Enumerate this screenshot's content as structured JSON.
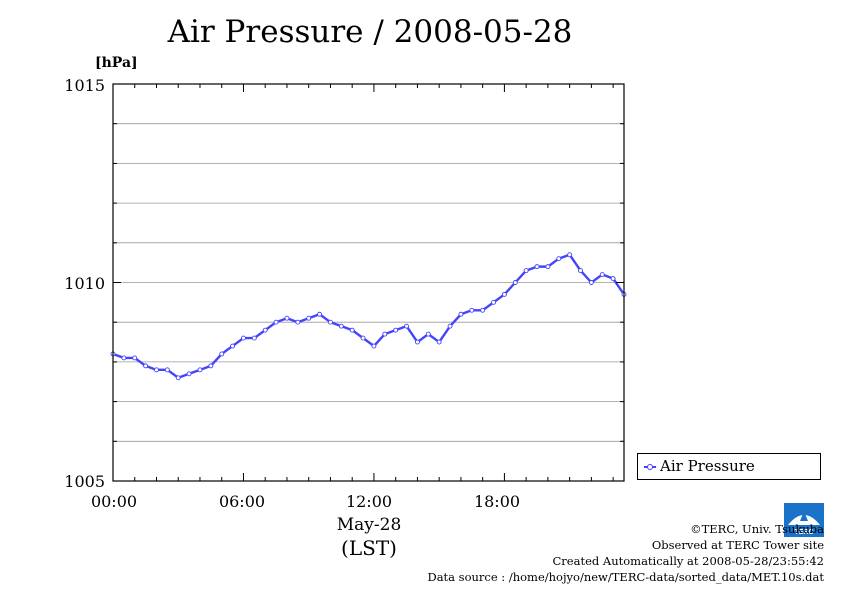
{
  "chart_data": {
    "type": "line",
    "title": "Air Pressure / 2008-05-28",
    "ylabel": "[hPa]",
    "xlabel_date": "May-28",
    "xlabel_tz": "(LST)",
    "ylim": [
      1005,
      1015
    ],
    "xlim_hours": [
      0,
      23.5
    ],
    "y_ticks": [
      "1015",
      "1010",
      "1005"
    ],
    "x_ticks": [
      "00:00",
      "06:00",
      "12:00",
      "18:00"
    ],
    "grid": true,
    "legend_position": "right",
    "series": [
      {
        "name": "Air Pressure",
        "color": "#4444ff",
        "x_hours": [
          0.0,
          0.5,
          1.0,
          1.5,
          2.0,
          2.5,
          3.0,
          3.5,
          4.0,
          4.5,
          5.0,
          5.5,
          6.0,
          6.5,
          7.0,
          7.5,
          8.0,
          8.5,
          9.0,
          9.5,
          10.0,
          10.5,
          11.0,
          11.5,
          12.0,
          12.5,
          13.0,
          13.5,
          14.0,
          14.5,
          15.0,
          15.5,
          16.0,
          16.5,
          17.0,
          17.5,
          18.0,
          18.5,
          19.0,
          19.5,
          20.0,
          20.5,
          21.0,
          21.5,
          22.0,
          22.5,
          23.0,
          23.5
        ],
        "values": [
          1008.2,
          1008.1,
          1008.1,
          1007.9,
          1007.8,
          1007.8,
          1007.6,
          1007.7,
          1007.8,
          1007.9,
          1008.2,
          1008.4,
          1008.6,
          1008.6,
          1008.8,
          1009.0,
          1009.1,
          1009.0,
          1009.1,
          1009.2,
          1009.0,
          1008.9,
          1008.8,
          1008.6,
          1008.4,
          1008.7,
          1008.8,
          1008.9,
          1008.5,
          1008.7,
          1008.5,
          1008.9,
          1009.2,
          1009.3,
          1009.3,
          1009.5,
          1009.7,
          1010.0,
          1010.3,
          1010.4,
          1010.4,
          1010.6,
          1010.7,
          1010.3,
          1010.0,
          1010.2,
          1010.1,
          1009.7
        ]
      }
    ]
  },
  "legend": {
    "label": "Air Pressure"
  },
  "credits": {
    "line1": "©TERC, Univ. Tsukuba",
    "line2": "Observed at TERC Tower site",
    "line3": "Created Automatically at 2008-05-28/23:55:42",
    "line4": "Data source : /home/hojyo/new/TERC-data/sorted_data/MET.10s.dat"
  },
  "logo": {
    "text": "TERC",
    "icon": "terc-logo-icon",
    "color": "#1a73c8"
  }
}
